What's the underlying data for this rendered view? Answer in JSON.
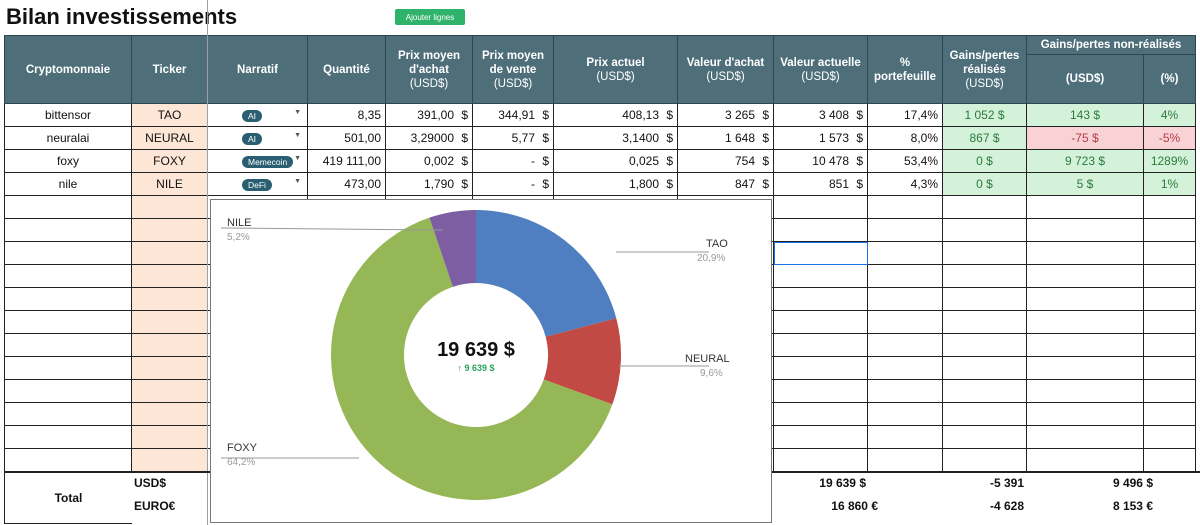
{
  "title": "Bilan investissements",
  "add_button": "Ajouter lignes",
  "headers": {
    "crypto": "Cryptomonnaie",
    "ticker": "Ticker",
    "narratif": "Narratif",
    "quantite": "Quantité",
    "prix_moyen_achat": "Prix moyen d'achat",
    "prix_moyen_achat_unit": "(USD$)",
    "prix_moyen_vente": "Prix moyen de vente",
    "prix_moyen_vente_unit": "(USD$)",
    "prix_actuel": "Prix actuel",
    "prix_actuel_unit": "(USD$)",
    "valeur_achat": "Valeur d'achat",
    "valeur_achat_unit": "(USD$)",
    "valeur_actuelle": "Valeur actuelle",
    "valeur_actuelle_unit": "(USD$)",
    "portefeuille": "% portefeuille",
    "gains_realises": "Gains/pertes réalisés",
    "gains_realises_unit": "(USD$)",
    "gains_non_realises": "Gains/pertes non-réalisés",
    "gains_nr_usd": "(USD$)",
    "gains_nr_pct": "(%)"
  },
  "rows": [
    {
      "crypto": "bittensor",
      "ticker": "TAO",
      "narratif": "AI",
      "quantite": "8,35",
      "pma": "391,00",
      "pmv": "344,91",
      "pa": "408,13",
      "va": "3 265",
      "vact": "3 408",
      "pct": "17,4%",
      "gr": "1 052 $",
      "gnr": "143 $",
      "gnrp": "4%"
    },
    {
      "crypto": "neuralai",
      "ticker": "NEURAL",
      "narratif": "AI",
      "quantite": "501,00",
      "pma": "3,29000",
      "pmv": "5,77",
      "pa": "3,1400",
      "va": "1 648",
      "vact": "1 573",
      "pct": "8,0%",
      "gr": "867 $",
      "gnr": "-75 $",
      "gnrp": "-5%"
    },
    {
      "crypto": "foxy",
      "ticker": "FOXY",
      "narratif": "Memecoin",
      "quantite": "419 111,00",
      "pma": "0,002",
      "pmv": "-",
      "pa": "0,025",
      "va": "754",
      "vact": "10 478",
      "pct": "53,4%",
      "gr": "0 $",
      "gnr": "9 723 $",
      "gnrp": "1289%"
    },
    {
      "crypto": "nile",
      "ticker": "NILE",
      "narratif": "DeFi",
      "quantite": "473,00",
      "pma": "1,790",
      "pmv": "-",
      "pa": "1,800",
      "va": "847",
      "vact": "851",
      "pct": "4,3%",
      "gr": "0 $",
      "gnr": "5 $",
      "gnrp": "1%"
    }
  ],
  "currency_symbol": "$",
  "totals": {
    "label": "Total",
    "usd_label": "USD$",
    "eur_label": "EURO€",
    "usd_valeur": "19 639 $",
    "usd_gr": "-5 391",
    "usd_gnr": "9 496 $",
    "eur_valeur": "16 860 €",
    "eur_gr": "-4 628",
    "eur_gnr": "8 153 €"
  },
  "chart_data": {
    "type": "pie",
    "center_value": "19 639 $",
    "center_sub": "↑ 9 639 $",
    "slices": [
      {
        "name": "TAO",
        "pct_label": "20,9%",
        "value": 20.9,
        "color": "#4f7fc1"
      },
      {
        "name": "NEURAL",
        "pct_label": "9,6%",
        "value": 9.6,
        "color": "#c24a45"
      },
      {
        "name": "FOXY",
        "pct_label": "64,2%",
        "value": 64.2,
        "color": "#96b755"
      },
      {
        "name": "NILE",
        "pct_label": "5,2%",
        "value": 5.2,
        "color": "#7d5ea3"
      }
    ]
  }
}
